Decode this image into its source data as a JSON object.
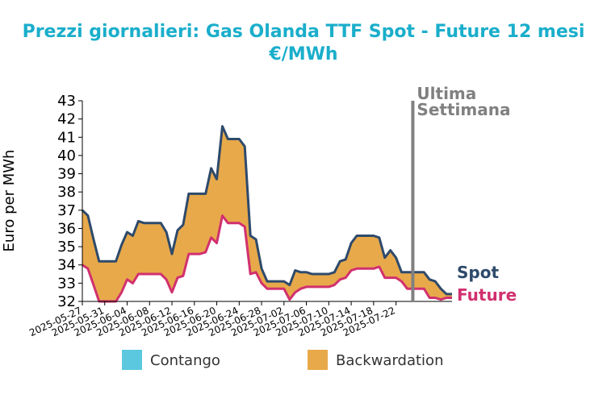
{
  "chart_data": {
    "type": "area",
    "title_line1": "Prezzi giornalieri: Gas Olanda TTF Spot - Future 12 mesi",
    "title_line2": "€/MWh",
    "ylabel": "Euro per MWh",
    "ylim": [
      32,
      43
    ],
    "yticks": [
      32,
      33,
      34,
      35,
      36,
      37,
      38,
      39,
      40,
      41,
      42,
      43
    ],
    "x_start": "2025-05-27",
    "x_end": "2025-07-25",
    "xticks": [
      "2025-05-27",
      "2025-05-31",
      "2025-06-04",
      "2025-06-08",
      "2025-06-12",
      "2025-06-16",
      "2025-06-20",
      "2025-06-24",
      "2025-06-28",
      "2025-07-02",
      "2025-07-06",
      "2025-07-10",
      "2025-07-14",
      "2025-07-18",
      "2025-07-22"
    ],
    "series": [
      {
        "name": "Spot",
        "color": "#2e4a6b",
        "points": [
          [
            "2025-05-27",
            37.0
          ],
          [
            "2025-05-28",
            36.7
          ],
          [
            "2025-05-29",
            35.4
          ],
          [
            "2025-05-30",
            34.2
          ],
          [
            "2025-05-31",
            34.2
          ],
          [
            "2025-06-01",
            34.2
          ],
          [
            "2025-06-02",
            34.2
          ],
          [
            "2025-06-03",
            35.1
          ],
          [
            "2025-06-04",
            35.8
          ],
          [
            "2025-06-05",
            35.6
          ],
          [
            "2025-06-06",
            36.4
          ],
          [
            "2025-06-07",
            36.3
          ],
          [
            "2025-06-08",
            36.3
          ],
          [
            "2025-06-09",
            36.3
          ],
          [
            "2025-06-10",
            36.3
          ],
          [
            "2025-06-11",
            35.8
          ],
          [
            "2025-06-12",
            34.6
          ],
          [
            "2025-06-13",
            35.9
          ],
          [
            "2025-06-14",
            36.2
          ],
          [
            "2025-06-15",
            37.9
          ],
          [
            "2025-06-16",
            37.9
          ],
          [
            "2025-06-17",
            37.9
          ],
          [
            "2025-06-18",
            37.9
          ],
          [
            "2025-06-19",
            39.3
          ],
          [
            "2025-06-20",
            38.7
          ],
          [
            "2025-06-21",
            41.6
          ],
          [
            "2025-06-22",
            40.9
          ],
          [
            "2025-06-23",
            40.9
          ],
          [
            "2025-06-24",
            40.9
          ],
          [
            "2025-06-25",
            40.5
          ],
          [
            "2025-06-26",
            35.6
          ],
          [
            "2025-06-27",
            35.4
          ],
          [
            "2025-06-28",
            33.8
          ],
          [
            "2025-06-29",
            33.1
          ],
          [
            "2025-06-30",
            33.1
          ],
          [
            "2025-07-01",
            33.1
          ],
          [
            "2025-07-02",
            33.1
          ],
          [
            "2025-07-03",
            32.9
          ],
          [
            "2025-07-04",
            33.7
          ],
          [
            "2025-07-05",
            33.6
          ],
          [
            "2025-07-06",
            33.6
          ],
          [
            "2025-07-07",
            33.5
          ],
          [
            "2025-07-08",
            33.5
          ],
          [
            "2025-07-09",
            33.5
          ],
          [
            "2025-07-10",
            33.5
          ],
          [
            "2025-07-11",
            33.6
          ],
          [
            "2025-07-12",
            34.2
          ],
          [
            "2025-07-13",
            34.3
          ],
          [
            "2025-07-14",
            35.2
          ],
          [
            "2025-07-15",
            35.6
          ],
          [
            "2025-07-16",
            35.6
          ],
          [
            "2025-07-17",
            35.6
          ],
          [
            "2025-07-18",
            35.6
          ],
          [
            "2025-07-19",
            35.5
          ],
          [
            "2025-07-20",
            34.4
          ],
          [
            "2025-07-21",
            34.8
          ],
          [
            "2025-07-22",
            34.4
          ],
          [
            "2025-07-23",
            33.6
          ],
          [
            "2025-07-24",
            33.6
          ],
          [
            "2025-07-25",
            33.6
          ]
        ]
      },
      {
        "name": "Future",
        "color": "#d1306f",
        "points": [
          [
            "2025-05-27",
            34.0
          ],
          [
            "2025-05-28",
            33.8
          ],
          [
            "2025-05-29",
            32.9
          ],
          [
            "2025-05-30",
            32.0
          ],
          [
            "2025-05-31",
            32.0
          ],
          [
            "2025-06-01",
            32.0
          ],
          [
            "2025-06-02",
            32.0
          ],
          [
            "2025-06-03",
            32.5
          ],
          [
            "2025-06-04",
            33.2
          ],
          [
            "2025-06-05",
            33.0
          ],
          [
            "2025-06-06",
            33.5
          ],
          [
            "2025-06-07",
            33.5
          ],
          [
            "2025-06-08",
            33.5
          ],
          [
            "2025-06-09",
            33.5
          ],
          [
            "2025-06-10",
            33.5
          ],
          [
            "2025-06-11",
            33.2
          ],
          [
            "2025-06-12",
            32.5
          ],
          [
            "2025-06-13",
            33.3
          ],
          [
            "2025-06-14",
            33.4
          ],
          [
            "2025-06-15",
            34.6
          ],
          [
            "2025-06-16",
            34.6
          ],
          [
            "2025-06-17",
            34.6
          ],
          [
            "2025-06-18",
            34.7
          ],
          [
            "2025-06-19",
            35.5
          ],
          [
            "2025-06-20",
            35.2
          ],
          [
            "2025-06-21",
            36.7
          ],
          [
            "2025-06-22",
            36.3
          ],
          [
            "2025-06-23",
            36.3
          ],
          [
            "2025-06-24",
            36.3
          ],
          [
            "2025-06-25",
            36.1
          ],
          [
            "2025-06-26",
            33.5
          ],
          [
            "2025-06-27",
            33.6
          ],
          [
            "2025-06-28",
            33.0
          ],
          [
            "2025-06-29",
            32.7
          ],
          [
            "2025-06-30",
            32.7
          ],
          [
            "2025-07-01",
            32.7
          ],
          [
            "2025-07-02",
            32.7
          ],
          [
            "2025-07-03",
            32.1
          ],
          [
            "2025-07-04",
            32.5
          ],
          [
            "2025-07-05",
            32.7
          ],
          [
            "2025-07-06",
            32.8
          ],
          [
            "2025-07-07",
            32.8
          ],
          [
            "2025-07-08",
            32.8
          ],
          [
            "2025-07-09",
            32.8
          ],
          [
            "2025-07-10",
            32.8
          ],
          [
            "2025-07-11",
            32.9
          ],
          [
            "2025-07-12",
            33.2
          ],
          [
            "2025-07-13",
            33.3
          ],
          [
            "2025-07-14",
            33.7
          ],
          [
            "2025-07-15",
            33.8
          ],
          [
            "2025-07-16",
            33.8
          ],
          [
            "2025-07-17",
            33.8
          ],
          [
            "2025-07-18",
            33.8
          ],
          [
            "2025-07-19",
            33.9
          ],
          [
            "2025-07-20",
            33.3
          ],
          [
            "2025-07-21",
            33.3
          ],
          [
            "2025-07-22",
            33.3
          ],
          [
            "2025-07-23",
            33.1
          ],
          [
            "2025-07-24",
            32.7
          ],
          [
            "2025-07-25",
            32.7
          ]
        ]
      }
    ],
    "last_week_series": [
      {
        "name": "Spot",
        "color": "#2e4a6b",
        "points": [
          [
            "2025-07-25",
            33.6
          ],
          [
            "2025-07-26",
            33.6
          ],
          [
            "2025-07-27",
            33.6
          ],
          [
            "2025-07-28",
            33.2
          ],
          [
            "2025-07-29",
            33.1
          ],
          [
            "2025-07-30",
            32.7
          ],
          [
            "2025-07-31",
            32.4
          ],
          [
            "2025-08-01",
            32.4
          ]
        ]
      },
      {
        "name": "Future",
        "color": "#d1306f",
        "points": [
          [
            "2025-07-25",
            32.7
          ],
          [
            "2025-07-26",
            32.7
          ],
          [
            "2025-07-27",
            32.7
          ],
          [
            "2025-07-28",
            32.2
          ],
          [
            "2025-07-29",
            32.2
          ],
          [
            "2025-07-30",
            32.1
          ],
          [
            "2025-07-31",
            32.2
          ],
          [
            "2025-08-01",
            32.2
          ]
        ]
      }
    ],
    "x_axis_end": "2025-08-01",
    "last_week_marker": "2025-07-25",
    "last_week_label_line1": "Ultima",
    "last_week_label_line2": "Settimana",
    "last_week_label_color": "#808080",
    "spot_label": "Spot",
    "future_label": "Future",
    "fill_backwardation_color": "#e8a94a",
    "fill_contango_color": "#5bc8e0",
    "legend": [
      {
        "label": "Contango",
        "color": "#5bc8e0"
      },
      {
        "label": "Backwardation",
        "color": "#e8a94a"
      }
    ],
    "legend_position": "bottom"
  }
}
